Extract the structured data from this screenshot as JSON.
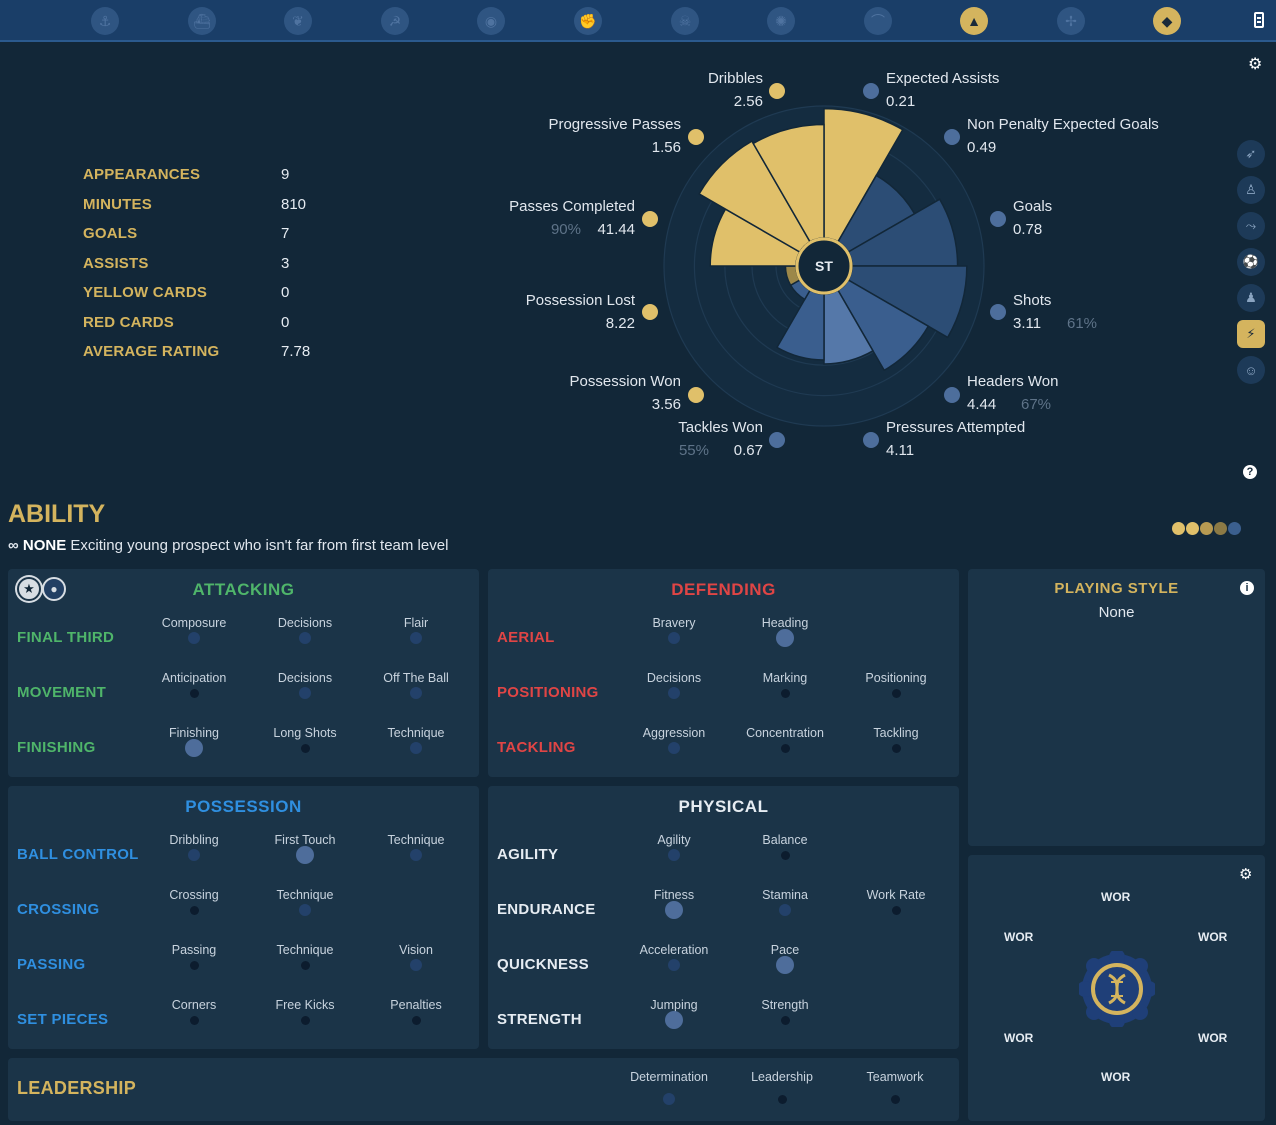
{
  "topbar": {
    "icons": [
      {
        "name": "anchor-icon",
        "glyph": "⚓"
      },
      {
        "name": "ship-icon",
        "glyph": "⛴"
      },
      {
        "name": "eagle-icon",
        "glyph": "❦"
      },
      {
        "name": "hammer-sickle-icon",
        "glyph": "☭"
      },
      {
        "name": "eye-icon",
        "glyph": "◉"
      },
      {
        "name": "fist-icon",
        "glyph": "✊"
      },
      {
        "name": "skull-icon",
        "glyph": "☠"
      },
      {
        "name": "sun-icon",
        "glyph": "✺"
      },
      {
        "name": "boot-icon",
        "glyph": "⌒"
      },
      {
        "name": "wizard-hat-icon",
        "glyph": "▲",
        "active": true
      },
      {
        "name": "compass-icon",
        "glyph": "✢"
      },
      {
        "name": "fox-icon",
        "glyph": "◆",
        "active": true
      }
    ]
  },
  "stats": [
    {
      "label": "APPEARANCES",
      "value": "9"
    },
    {
      "label": "MINUTES",
      "value": "810"
    },
    {
      "label": "GOALS",
      "value": "7"
    },
    {
      "label": "ASSISTS",
      "value": "3"
    },
    {
      "label": "YELLOW CARDS",
      "value": "0"
    },
    {
      "label": "RED CARDS",
      "value": "0"
    },
    {
      "label": "AVERAGE RATING",
      "value": "7.78"
    }
  ],
  "radar": {
    "center_label": "ST",
    "metrics": [
      {
        "label": "Dribbles",
        "value": "2.56",
        "pct": "",
        "color": "gold"
      },
      {
        "label": "Expected Assists",
        "value": "0.21",
        "pct": "",
        "color": "blue"
      },
      {
        "label": "Non Penalty Expected Goals",
        "value": "0.49",
        "pct": "",
        "color": "blue"
      },
      {
        "label": "Goals",
        "value": "0.78",
        "pct": "",
        "color": "blue"
      },
      {
        "label": "Shots",
        "value": "3.11",
        "pct": "61%",
        "color": "blue"
      },
      {
        "label": "Headers Won",
        "value": "4.44",
        "pct": "67%",
        "color": "blue"
      },
      {
        "label": "Pressures Attempted",
        "value": "4.11",
        "pct": "",
        "color": "blue"
      },
      {
        "label": "Tackles Won",
        "value": "0.67",
        "pct": "55%",
        "color": "blue"
      },
      {
        "label": "Possession Won",
        "value": "3.56",
        "pct": "",
        "color": "gold"
      },
      {
        "label": "Possession Lost",
        "value": "8.22",
        "pct": "",
        "color": "gold"
      },
      {
        "label": "Passes Completed",
        "value": "41.44",
        "pct": "90%",
        "color": "gold"
      },
      {
        "label": "Progressive Passes",
        "value": "1.56",
        "pct": "",
        "color": "gold"
      }
    ],
    "levels": [
      0.98,
      0.58,
      0.8,
      0.87,
      0.7,
      0.53,
      0.5,
      0.08,
      0.08,
      0.65,
      0.88,
      0.86
    ]
  },
  "side_icons": [
    "diving-player-icon",
    "standing-player-icon",
    "sliding-player-icon",
    "kicking-player-icon",
    "running-player-icon",
    "striker-icon",
    "coach-icon"
  ],
  "ability": {
    "title": "ABILITY",
    "tag": "NONE",
    "description": "Exciting young prospect who isn't far from first team level",
    "dots": [
      "#e0c06a",
      "#e0c06a",
      "#b79a52",
      "#8c7a45",
      "#3b5f8e"
    ]
  },
  "attacking": {
    "title": "ATTACKING",
    "groups": [
      {
        "label": "FINAL THIRD",
        "attrs": [
          {
            "name": "Composure",
            "size": "mid"
          },
          {
            "name": "Decisions",
            "size": "mid"
          },
          {
            "name": "Flair",
            "size": "mid"
          }
        ]
      },
      {
        "label": "MOVEMENT",
        "attrs": [
          {
            "name": "Anticipation",
            "size": "small"
          },
          {
            "name": "Decisions",
            "size": "mid"
          },
          {
            "name": "Off The Ball",
            "size": "mid"
          }
        ]
      },
      {
        "label": "FINISHING",
        "attrs": [
          {
            "name": "Finishing",
            "size": "big"
          },
          {
            "name": "Long Shots",
            "size": "small"
          },
          {
            "name": "Technique",
            "size": "mid"
          }
        ]
      }
    ]
  },
  "defending": {
    "title": "DEFENDING",
    "groups": [
      {
        "label": "AERIAL",
        "attrs": [
          {
            "name": "Bravery",
            "size": "mid"
          },
          {
            "name": "Heading",
            "size": "big"
          }
        ]
      },
      {
        "label": "POSITIONING",
        "attrs": [
          {
            "name": "Decisions",
            "size": "mid"
          },
          {
            "name": "Marking",
            "size": "small"
          },
          {
            "name": "Positioning",
            "size": "small"
          }
        ]
      },
      {
        "label": "TACKLING",
        "attrs": [
          {
            "name": "Aggression",
            "size": "mid"
          },
          {
            "name": "Concentration",
            "size": "small"
          },
          {
            "name": "Tackling",
            "size": "small"
          }
        ]
      }
    ]
  },
  "possession": {
    "title": "POSSESSION",
    "groups": [
      {
        "label": "BALL CONTROL",
        "attrs": [
          {
            "name": "Dribbling",
            "size": "mid"
          },
          {
            "name": "First Touch",
            "size": "big"
          },
          {
            "name": "Technique",
            "size": "mid"
          }
        ]
      },
      {
        "label": "CROSSING",
        "attrs": [
          {
            "name": "Crossing",
            "size": "small"
          },
          {
            "name": "Technique",
            "size": "mid"
          }
        ]
      },
      {
        "label": "PASSING",
        "attrs": [
          {
            "name": "Passing",
            "size": "small"
          },
          {
            "name": "Technique",
            "size": "small"
          },
          {
            "name": "Vision",
            "size": "mid"
          }
        ]
      },
      {
        "label": "SET PIECES",
        "attrs": [
          {
            "name": "Corners",
            "size": "small"
          },
          {
            "name": "Free Kicks",
            "size": "small"
          },
          {
            "name": "Penalties",
            "size": "small"
          }
        ]
      }
    ]
  },
  "physical": {
    "title": "PHYSICAL",
    "groups": [
      {
        "label": "AGILITY",
        "attrs": [
          {
            "name": "Agility",
            "size": "mid"
          },
          {
            "name": "Balance",
            "size": "small"
          }
        ]
      },
      {
        "label": "ENDURANCE",
        "attrs": [
          {
            "name": "Fitness",
            "size": "big"
          },
          {
            "name": "Stamina",
            "size": "mid"
          },
          {
            "name": "Work Rate",
            "size": "small"
          }
        ]
      },
      {
        "label": "QUICKNESS",
        "attrs": [
          {
            "name": "Acceleration",
            "size": "mid"
          },
          {
            "name": "Pace",
            "size": "big"
          }
        ]
      },
      {
        "label": "STRENGTH",
        "attrs": [
          {
            "name": "Jumping",
            "size": "big"
          },
          {
            "name": "Strength",
            "size": "small"
          }
        ]
      }
    ]
  },
  "leadership": {
    "title": "LEADERSHIP",
    "attrs": [
      {
        "name": "Determination",
        "size": "mid"
      },
      {
        "name": "Leadership",
        "size": "small"
      },
      {
        "name": "Teamwork",
        "size": "small"
      }
    ]
  },
  "playing_style": {
    "title": "PLAYING STYLE",
    "value": "None"
  },
  "dna": {
    "labels": [
      "WOR",
      "WOR",
      "WOR",
      "WOR",
      "WOR",
      "WOR"
    ]
  },
  "colors": {
    "gold": "#d4b45e",
    "attacking": "#4fb56a",
    "defending": "#e04545",
    "possession": "#2f8fe0",
    "physical": "#e6ecf2"
  }
}
